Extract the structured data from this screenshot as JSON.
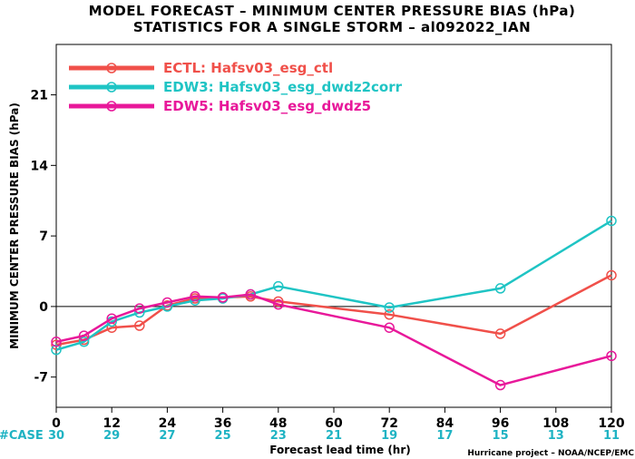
{
  "title_line1": "MODEL FORECAST – MINIMUM CENTER PRESSURE BIAS (hPa)",
  "title_line2": "STATISTICS FOR A SINGLE STORM – al092022_IAN",
  "credit": "Hurricane project – NOAA/NCEP/EMC",
  "case_label": "#CASE",
  "case_color": "#1fb3c3",
  "chart_data": {
    "type": "line",
    "title": "MODEL FORECAST – MINIMUM CENTER PRESSURE BIAS (hPa)",
    "subtitle": "STATISTICS FOR A SINGLE STORM – al092022_IAN",
    "xlabel": "Forecast lead time (hr)",
    "ylabel": "MINIMUM CENTER PRESSURE BIAS (hPa)",
    "xlim": [
      0,
      120
    ],
    "ylim": [
      -10,
      26
    ],
    "xticks": [
      "0",
      "12",
      "24",
      "36",
      "48",
      "60",
      "72",
      "84",
      "96",
      "108",
      "120"
    ],
    "yticks": [
      "-7",
      "0",
      "7",
      "14",
      "21"
    ],
    "zero_line": true,
    "legend_position": "top-left",
    "case_counts": [
      "30",
      "29",
      "27",
      "25",
      "23",
      "21",
      "19",
      "17",
      "15",
      "13",
      "11"
    ],
    "series": [
      {
        "name": "ECTL: Hafsv03_esg_ctl",
        "color": "#f0504a",
        "points": [
          [
            0,
            -3.8
          ],
          [
            6,
            -3.3
          ],
          [
            12,
            -2.1
          ],
          [
            18,
            -1.9
          ],
          [
            24,
            0.1
          ],
          [
            30,
            0.8
          ],
          [
            36,
            0.9
          ],
          [
            42,
            1.0
          ],
          [
            48,
            0.5
          ],
          [
            72,
            -0.8
          ],
          [
            96,
            -2.7
          ],
          [
            120,
            3.1
          ]
        ]
      },
      {
        "name": "EDW3: Hafsv03_esg_dwdz2corr",
        "color": "#1fc4c4",
        "points": [
          [
            0,
            -4.3
          ],
          [
            6,
            -3.5
          ],
          [
            12,
            -1.5
          ],
          [
            18,
            -0.6
          ],
          [
            24,
            0.0
          ],
          [
            30,
            0.6
          ],
          [
            36,
            0.8
          ],
          [
            42,
            1.2
          ],
          [
            48,
            2.0
          ],
          [
            72,
            -0.1
          ],
          [
            96,
            1.8
          ],
          [
            120,
            8.5
          ]
        ]
      },
      {
        "name": "EDW5: Hafsv03_esg_dwdz5",
        "color": "#e8189a",
        "points": [
          [
            0,
            -3.5
          ],
          [
            6,
            -2.9
          ],
          [
            12,
            -1.2
          ],
          [
            18,
            -0.2
          ],
          [
            24,
            0.4
          ],
          [
            30,
            1.0
          ],
          [
            36,
            0.9
          ],
          [
            42,
            1.2
          ],
          [
            48,
            0.2
          ],
          [
            72,
            -2.1
          ],
          [
            96,
            -7.8
          ],
          [
            120,
            -4.9
          ]
        ]
      }
    ]
  }
}
